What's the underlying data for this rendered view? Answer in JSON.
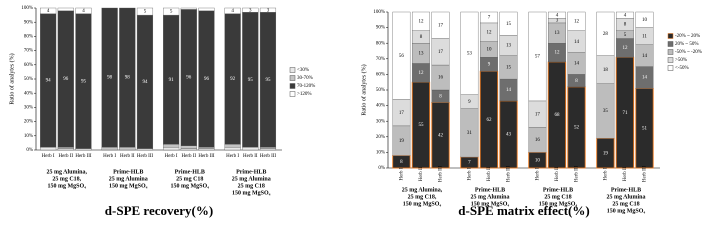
{
  "chart_data": [
    {
      "type": "stacked-bar",
      "title": "d-SPE recovery(%)",
      "ylabel": "Ratio of analytes (%)",
      "categories": [
        "Herb I",
        "Herb II",
        "Herb III",
        "Herb I",
        "Herb II",
        "Herb III",
        "Herb I",
        "Herb II",
        "Herb III",
        "Herb I",
        "Herb II",
        "Herb III"
      ],
      "groups": [
        [
          "25 mg Alumina,",
          "25 mg C18,",
          "150 mg MgSO₄"
        ],
        [
          "Prime-HLB",
          "25 mg Alumina",
          "150 mg MgSO₄"
        ],
        [
          "Prime-HLB",
          "25 mg C18",
          "150 mg MgSO₄"
        ],
        [
          "Prime-HLB",
          "25 mg Alumina",
          "25 mg C18",
          "150 mg MgSO₄"
        ]
      ],
      "series": [
        {
          "name": "<30%",
          "color": "#e8e8e8",
          "values": [
            2,
            1,
            1,
            0,
            0,
            1,
            2,
            1,
            1,
            2,
            2,
            1
          ]
        },
        {
          "name": "30-70%",
          "color": "#c4c4c4",
          "values": [
            0,
            1,
            0,
            2,
            2,
            0,
            2,
            2,
            1,
            2,
            0,
            1
          ]
        },
        {
          "name": "70-120%",
          "color": "#3a3a3a",
          "values": [
            94,
            96,
            95,
            98,
            98,
            94,
            91,
            96,
            96,
            92,
            95,
            95
          ]
        },
        {
          "name": ">120%",
          "color": "#ffffff",
          "values": [
            4,
            2,
            4,
            0,
            0,
            5,
            5,
            1,
            2,
            4,
            3,
            3
          ]
        }
      ],
      "ylim": [
        0,
        100
      ],
      "yticks": [
        {
          "value": 0,
          "label": "0%"
        },
        {
          "value": 10,
          "label": "10%"
        },
        {
          "value": 20,
          "label": "20%"
        },
        {
          "value": 30,
          "label": "30%"
        },
        {
          "value": 40,
          "label": "40%"
        },
        {
          "value": 50,
          "label": "50%"
        },
        {
          "value": 60,
          "label": "60%"
        },
        {
          "value": 70,
          "label": "70%"
        },
        {
          "value": 80,
          "label": "80%"
        },
        {
          "value": 90,
          "label": "90%"
        },
        {
          "value": 100,
          "label": "100%"
        }
      ]
    },
    {
      "type": "stacked-bar",
      "title": "d-SPE matrix effect(%)",
      "ylabel": "Ratio of analytes (%)",
      "categories": [
        "Herb I",
        "Herb II",
        "Herb III",
        "Herb I",
        "Herb II",
        "Herb III",
        "Herb I",
        "Herb II",
        "Herb III",
        "Herb I",
        "Herb II",
        "Herb III"
      ],
      "groups": [
        [
          "25 mg Alumina,",
          "25 mg C18,",
          "150 mg MgSO₄"
        ],
        [
          "Prime-HLB",
          "25 mg Alumina",
          "150 mg MgSO₄"
        ],
        [
          "Prime-HLB",
          "25 mg C18",
          "150 mg MgSO₄"
        ],
        [
          "Prime-HLB",
          "25 mg Alumina",
          "25 mg C18",
          "150 mg MgSO₄"
        ]
      ],
      "series": [
        {
          "name": "-20% ~ 20%",
          "color": "#2b2b2b",
          "edge": "#e8771e",
          "values": [
            8,
            55,
            42,
            7,
            62,
            43,
            10,
            68,
            52,
            19,
            71,
            51
          ]
        },
        {
          "name": "20% ~ 50%",
          "color": "#6e6e6e",
          "values": [
            0,
            12,
            8,
            0,
            9,
            14,
            0,
            12,
            8,
            0,
            12,
            14
          ]
        },
        {
          "name": "-50% ~ -20%",
          "color": "#bdbdbd",
          "values": [
            19,
            13,
            16,
            31,
            10,
            15,
            16,
            13,
            14,
            35,
            5,
            14
          ]
        },
        {
          "name": ">50%",
          "color": "#dcdcdc",
          "values": [
            17,
            8,
            17,
            9,
            12,
            13,
            17,
            3,
            14,
            18,
            8,
            11
          ]
        },
        {
          "name": "<-50%",
          "color": "#ffffff",
          "values": [
            56,
            12,
            17,
            53,
            7,
            15,
            57,
            4,
            12,
            28,
            4,
            10
          ]
        }
      ],
      "ylim": [
        0,
        100
      ],
      "yticks": [
        {
          "value": 0,
          "label": "0%"
        },
        {
          "value": 10,
          "label": "10%"
        },
        {
          "value": 20,
          "label": "20%"
        },
        {
          "value": 30,
          "label": "30%"
        },
        {
          "value": 40,
          "label": "40%"
        },
        {
          "value": 50,
          "label": "50%"
        },
        {
          "value": 60,
          "label": "60%"
        },
        {
          "value": 70,
          "label": "70%"
        },
        {
          "value": 80,
          "label": "80%"
        },
        {
          "value": 90,
          "label": "90%"
        },
        {
          "value": 100,
          "label": "100%"
        }
      ]
    }
  ]
}
